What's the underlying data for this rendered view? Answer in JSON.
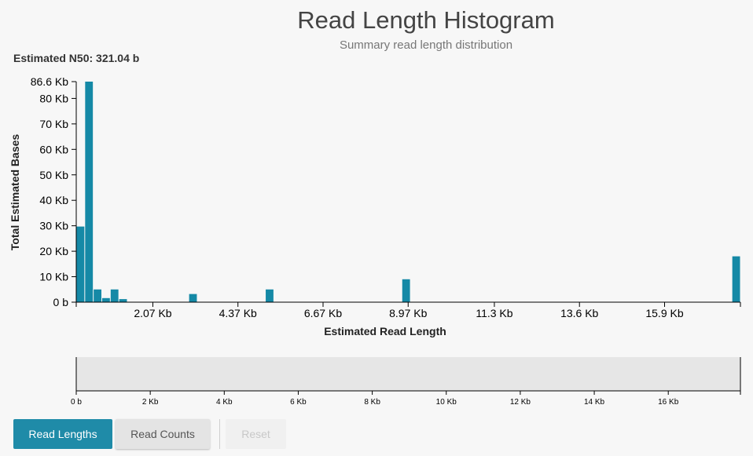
{
  "header": {
    "title": "Read Length Histogram",
    "subtitle": "Summary read length distribution"
  },
  "n50_label": "Estimated N50: 321.04 b",
  "colors": {
    "bar": "#1589a6",
    "primary_button": "#1f8ba8",
    "brush_background": "#e6e6e6"
  },
  "buttons": {
    "read_lengths": "Read Lengths",
    "read_counts": "Read Counts",
    "reset": "Reset"
  },
  "chart_data": [
    {
      "type": "bar",
      "title": "Read Length Histogram",
      "subtitle": "Summary read length distribution",
      "xlabel": "Estimated Read Length",
      "ylabel": "Total Estimated Bases",
      "x_unit": "bases",
      "y_unit": "bases",
      "xlim": [
        0,
        17950
      ],
      "ylim": [
        0,
        86600
      ],
      "x_ticks": [
        {
          "value": 2070,
          "label": "2.07 Kb"
        },
        {
          "value": 4370,
          "label": "4.37 Kb"
        },
        {
          "value": 6670,
          "label": "6.67 Kb"
        },
        {
          "value": 8970,
          "label": "8.97 Kb"
        },
        {
          "value": 11300,
          "label": "11.3 Kb"
        },
        {
          "value": 13600,
          "label": "13.6 Kb"
        },
        {
          "value": 15900,
          "label": "15.9 Kb"
        }
      ],
      "y_ticks": [
        {
          "value": 0,
          "label": "0 b"
        },
        {
          "value": 10000,
          "label": "10 Kb"
        },
        {
          "value": 20000,
          "label": "20 Kb"
        },
        {
          "value": 30000,
          "label": "30 Kb"
        },
        {
          "value": 40000,
          "label": "40 Kb"
        },
        {
          "value": 50000,
          "label": "50 Kb"
        },
        {
          "value": 60000,
          "label": "60 Kb"
        },
        {
          "value": 70000,
          "label": "70 Kb"
        },
        {
          "value": 80000,
          "label": "80 Kb"
        },
        {
          "value": 86600,
          "label": "86.6 Kb"
        }
      ],
      "bins": [
        {
          "x0": 0,
          "x1": 230,
          "value": 29700
        },
        {
          "x0": 230,
          "x1": 460,
          "value": 86600
        },
        {
          "x0": 460,
          "x1": 690,
          "value": 5000
        },
        {
          "x0": 690,
          "x1": 920,
          "value": 1600
        },
        {
          "x0": 920,
          "x1": 1150,
          "value": 5000
        },
        {
          "x0": 1150,
          "x1": 1380,
          "value": 1200
        },
        {
          "x0": 3040,
          "x1": 3270,
          "value": 3200
        },
        {
          "x0": 5110,
          "x1": 5340,
          "value": 5000
        },
        {
          "x0": 8800,
          "x1": 9030,
          "value": 9000
        },
        {
          "x0": 17720,
          "x1": 17950,
          "value": 18000
        }
      ],
      "grid": false,
      "legend": "none"
    },
    {
      "type": "bar",
      "role": "range-selector",
      "xlim": [
        0,
        17950
      ],
      "x_ticks": [
        {
          "value": 0,
          "label": "0 b"
        },
        {
          "value": 2000,
          "label": "2 Kb"
        },
        {
          "value": 4000,
          "label": "4 Kb"
        },
        {
          "value": 6000,
          "label": "6 Kb"
        },
        {
          "value": 8000,
          "label": "8 Kb"
        },
        {
          "value": 10000,
          "label": "10 Kb"
        },
        {
          "value": 12000,
          "label": "12 Kb"
        },
        {
          "value": 14000,
          "label": "14 Kb"
        },
        {
          "value": 16000,
          "label": "16 Kb"
        }
      ]
    }
  ]
}
